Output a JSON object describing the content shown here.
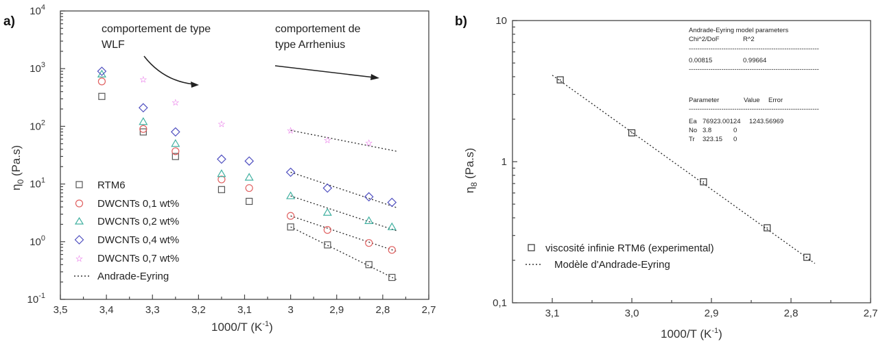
{
  "chart_data": [
    {
      "panel_label": "a)",
      "type": "scatter",
      "xlabel": "1000/T (K",
      "xlabel_sup": "-1",
      "xlabel_end": ")",
      "ylabel_main": "η",
      "ylabel_sub": "0",
      "ylabel_rest": " (Pa.s)",
      "x_reversed": true,
      "xlim": [
        3.5,
        2.7
      ],
      "ylim": [
        0.1,
        10000
      ],
      "y_log": true,
      "x_ticks": [
        "3,5",
        "3,4",
        "3,3",
        "3,2",
        "3,1",
        "3",
        "2,9",
        "2,8",
        "2,7"
      ],
      "x_tick_values": [
        3.5,
        3.4,
        3.3,
        3.2,
        3.1,
        3.0,
        2.9,
        2.8,
        2.7
      ],
      "y_ticks": [
        {
          "base": "10",
          "exp": "-1"
        },
        {
          "base": "10",
          "exp": "0"
        },
        {
          "base": "10",
          "exp": "1"
        },
        {
          "base": "10",
          "exp": "2"
        },
        {
          "base": "10",
          "exp": "3"
        },
        {
          "base": "10",
          "exp": "4"
        }
      ],
      "y_tick_values": [
        0.1,
        1,
        10,
        100,
        1000,
        10000
      ],
      "annotations": [
        "comportement  de type",
        "WLF",
        "comportement de",
        "type Arrhenius"
      ],
      "legend_placement": "bottom-left",
      "series": [
        {
          "name": "RTM6",
          "marker": "square",
          "color": "#555555",
          "x": [
            3.41,
            3.32,
            3.25,
            3.15,
            3.09,
            3.0,
            2.92,
            2.83,
            2.78
          ],
          "y": [
            330,
            80,
            30,
            8,
            5,
            1.8,
            0.88,
            0.4,
            0.24
          ]
        },
        {
          "name": "DWCNTs 0,1 wt%",
          "marker": "circle",
          "color": "#e06060",
          "x": [
            3.41,
            3.32,
            3.25,
            3.15,
            3.09,
            3.0,
            2.92,
            2.83,
            2.78
          ],
          "y": [
            600,
            90,
            37,
            12,
            8.5,
            2.8,
            1.6,
            0.95,
            0.72
          ]
        },
        {
          "name": "DWCNTs 0,2 wt%",
          "marker": "triangle",
          "color": "#40b0a0",
          "x": [
            3.41,
            3.32,
            3.25,
            3.15,
            3.09,
            3.0,
            2.92,
            2.83,
            2.78
          ],
          "y": [
            800,
            120,
            50,
            15,
            13,
            6.2,
            3.2,
            2.3,
            1.8
          ]
        },
        {
          "name": "DWCNTs 0,4 wt%",
          "marker": "diamond",
          "color": "#5050c0",
          "x": [
            3.41,
            3.32,
            3.25,
            3.15,
            3.09,
            3.0,
            2.92,
            2.83,
            2.78
          ],
          "y": [
            900,
            210,
            80,
            27,
            25,
            16,
            8.5,
            6,
            4.8
          ]
        },
        {
          "name": "DWCNTs 0,7 wt%",
          "marker": "star",
          "color": "#e040e0",
          "x": [
            3.32,
            3.25,
            3.15,
            3.0,
            2.92,
            2.83
          ],
          "y": [
            650,
            260,
            110,
            85,
            58,
            52
          ]
        }
      ],
      "fit": {
        "name": "Andrade-Eyring",
        "x_range": [
          3.0,
          2.77
        ],
        "lines": [
          [
            85,
            37
          ],
          [
            16,
            3.9
          ],
          [
            6.2,
            1.55
          ],
          [
            2.8,
            0.68
          ],
          [
            1.8,
            0.22
          ]
        ]
      }
    },
    {
      "panel_label": "b)",
      "type": "scatter",
      "xlabel": "1000/T (K",
      "xlabel_sup": "-1",
      "xlabel_end": ")",
      "ylabel_main": "η",
      "ylabel_sub": "8",
      "ylabel_rest": " (Pa.s)",
      "x_reversed": true,
      "xlim": [
        3.15,
        2.7
      ],
      "ylim": [
        0.1,
        10
      ],
      "y_log": true,
      "x_ticks": [
        "3,1",
        "3,0",
        "2,9",
        "2,8",
        "2,7"
      ],
      "x_tick_values": [
        3.1,
        3.0,
        2.9,
        2.8,
        2.7
      ],
      "y_ticks": [
        "0,1",
        "1",
        "10"
      ],
      "y_tick_values": [
        0.1,
        1,
        10
      ],
      "legend_placement": "bottom-left",
      "series": [
        {
          "name": "viscosité infinie RTM6  (experimental)",
          "marker": "square",
          "color": "#333333",
          "x": [
            3.09,
            3.0,
            2.91,
            2.83,
            2.78
          ],
          "y": [
            3.8,
            1.6,
            0.72,
            0.34,
            0.21
          ]
        }
      ],
      "fit": {
        "name": "Modèle d'Andrade-Eyring",
        "x_range": [
          3.1,
          2.77
        ],
        "y_range": [
          4.1,
          0.19
        ]
      },
      "params_table": {
        "title": "Andrade-Eyring model parameters",
        "h1": "Chi^2/DoF",
        "h2": "R^2",
        "v1": "0.00815",
        "v2": "0.99664",
        "dash": "------------------------------------------------------------",
        "cols": [
          "Parameter",
          "Value",
          "Error"
        ],
        "rows": [
          [
            "Ea",
            "76923.00124",
            "1243.56969"
          ],
          [
            "No",
            "3.8",
            "0"
          ],
          [
            "Tr",
            "323.15",
            "0"
          ]
        ]
      }
    }
  ]
}
